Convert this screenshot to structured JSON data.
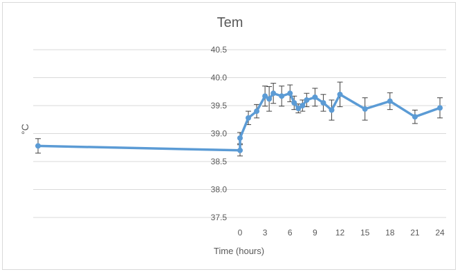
{
  "chart_data": {
    "type": "line",
    "title": "Tem",
    "xlabel": "Time (hours)",
    "ylabel": "°C",
    "ylim": [
      37.5,
      40.5
    ],
    "yticks": [
      "37.5",
      "38.0",
      "38.5",
      "39.0",
      "39.5",
      "40.0",
      "40.5"
    ],
    "xticks": [
      "0",
      "3",
      "6",
      "9",
      "12",
      "15",
      "18",
      "21",
      "24"
    ],
    "grid": "horizontal",
    "legend": "none",
    "series": [
      {
        "color": "#5b9bd5",
        "x": [
          -24,
          0,
          0,
          1,
          2,
          3,
          3.5,
          4,
          5,
          6,
          6.5,
          7,
          7.5,
          8,
          9,
          10,
          11,
          12,
          15,
          18,
          21,
          24
        ],
        "y": [
          38.78,
          38.7,
          38.92,
          39.28,
          39.4,
          39.67,
          39.62,
          39.72,
          39.67,
          39.72,
          39.55,
          39.45,
          39.5,
          39.6,
          39.65,
          39.55,
          39.42,
          39.7,
          39.44,
          39.58,
          39.3,
          39.46
        ],
        "err": [
          0.13,
          0.1,
          0.1,
          0.12,
          0.12,
          0.18,
          0.22,
          0.18,
          0.18,
          0.15,
          0.12,
          0.08,
          0.1,
          0.12,
          0.16,
          0.15,
          0.18,
          0.22,
          0.2,
          0.15,
          0.12,
          0.18
        ]
      }
    ]
  }
}
